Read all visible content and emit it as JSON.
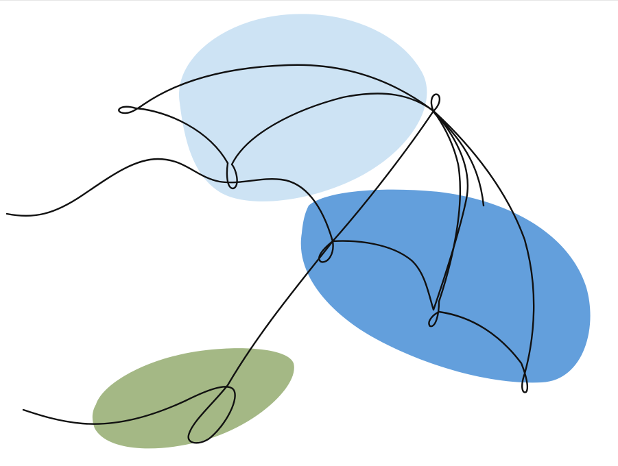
{
  "artwork": {
    "subject": "umbrella-line-drawing",
    "colors": {
      "background": "#ffffff",
      "line": "#111111",
      "light_blue_blob": "#cde3f4",
      "blue_blob": "#639fdc",
      "green_blob": "#a4b885"
    }
  }
}
